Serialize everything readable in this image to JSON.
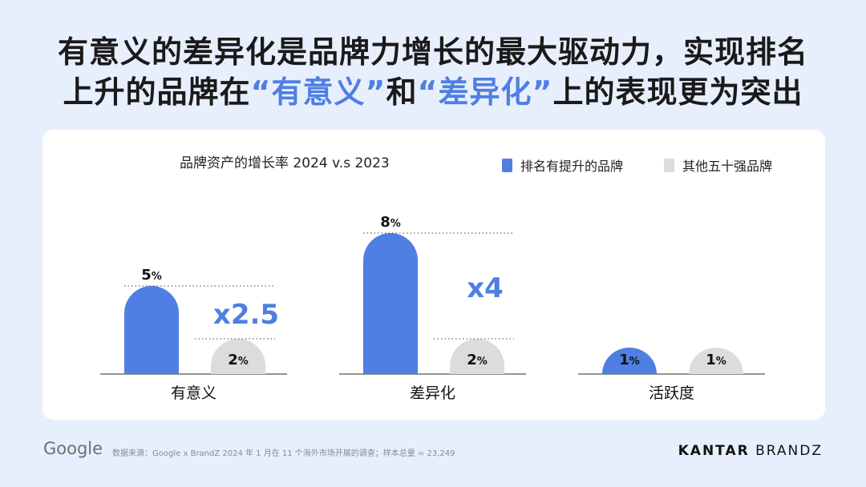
{
  "title": {
    "line1": "有意义的差异化是品牌力增长的最大驱动力，实现排名",
    "line2_prefix": "上升的品牌在",
    "line2_hl1": "“有意义”",
    "line2_mid": "和",
    "line2_hl2": "“差异化”",
    "line2_suffix": "上的表现更为突出"
  },
  "colors": {
    "primary": "#4f7fe3",
    "secondary": "#dcdcdc",
    "accent_text": "#4f7fe3"
  },
  "chart_data": {
    "type": "bar",
    "title": "品牌资产的增长率 2024 v.s 2023",
    "categories": [
      "有意义",
      "差异化",
      "活跃度"
    ],
    "series": [
      {
        "name": "排名有提升的品牌",
        "values": [
          5,
          8,
          1
        ],
        "labels": [
          "5%",
          "8%",
          "1%"
        ],
        "color": "#4f7fe3"
      },
      {
        "name": "其他五十强品牌",
        "values": [
          2,
          2,
          1
        ],
        "labels": [
          "2%",
          "2%",
          "1%"
        ],
        "color": "#dcdcdc"
      }
    ],
    "multipliers": [
      "x2.5",
      "x4",
      ""
    ],
    "ylim": [
      0,
      8
    ],
    "legend_position": "top-right"
  },
  "footer": {
    "google": "Google",
    "source": "数据来源：Google x BrandZ 2024 年 1 月在 11 个海外市场开展的调查；样本总量 = 23,249",
    "kantar_bold": "KANTAR",
    "kantar_rest": "BRANDZ"
  }
}
